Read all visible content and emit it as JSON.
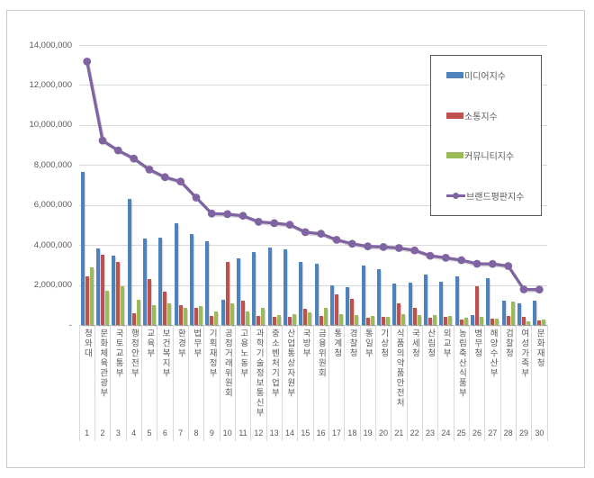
{
  "chart": {
    "y_axis": {
      "tick_labels": [
        "14,000,000",
        "12,000,000",
        "10,000,000",
        "8,000,000",
        "6,000,000",
        "4,000,000",
        "2,000,000",
        "-"
      ],
      "tick_values": [
        14000000,
        12000000,
        10000000,
        8000000,
        6000000,
        4000000,
        2000000,
        0
      ]
    },
    "colors": {
      "grid": "#d9d9d9",
      "axis_line": "#bfbfbf",
      "frame": "#c9c9c9",
      "axis_text": "#595959",
      "legend_border": "#595959"
    }
  },
  "chart_data": {
    "type": "bar",
    "subtype": "grouped bars with line overlay",
    "title": "",
    "xlabel": "",
    "ylabel": "",
    "ylim": [
      0,
      14000000
    ],
    "y_tick_step": 2000000,
    "grid": true,
    "legend_position": "upper-right",
    "categories": [
      "청와대",
      "문화체육관광부",
      "국토교통부",
      "행정안전부",
      "교육부",
      "보건복지부",
      "환경부",
      "법무부",
      "기획재정부",
      "공정거래위원회",
      "고용노동부",
      "과학기술정보통신부",
      "중소벤처기업부",
      "산업통상자원부",
      "국방부",
      "금융위원회",
      "통계청",
      "경찰청",
      "통일부",
      "기상청",
      "식품의약품안전처",
      "국세청",
      "산림청",
      "외교부",
      "농림축산식품부",
      "병무청",
      "해양수산부",
      "검찰청",
      "여성가족부",
      "문화재청"
    ],
    "ranks": [
      "1",
      "2",
      "3",
      "4",
      "5",
      "6",
      "7",
      "8",
      "9",
      "10",
      "11",
      "12",
      "13",
      "14",
      "15",
      "16",
      "17",
      "18",
      "19",
      "20",
      "21",
      "22",
      "23",
      "24",
      "25",
      "26",
      "27",
      "28",
      "29",
      "30"
    ],
    "series": [
      {
        "name": "미디어지수",
        "type": "bar",
        "color": "#4F81BD",
        "values": [
          7670000,
          3840000,
          3460000,
          6320000,
          4310000,
          4380000,
          5090000,
          4560000,
          4190000,
          1250000,
          3350000,
          3660000,
          3850000,
          3790000,
          3130000,
          3080000,
          1960000,
          1870000,
          2950000,
          2790000,
          2080000,
          2120000,
          2530000,
          2170000,
          2450000,
          500000,
          2330000,
          1220000,
          1100000,
          1200000
        ]
      },
      {
        "name": "소통지수",
        "type": "bar",
        "color": "#C0504D",
        "values": [
          2450000,
          3510000,
          3130000,
          570000,
          2300000,
          1670000,
          1000000,
          850000,
          450000,
          3130000,
          1220000,
          450000,
          410000,
          390000,
          800000,
          470000,
          1550000,
          1300000,
          350000,
          420000,
          1100000,
          870000,
          370000,
          420000,
          270000,
          1930000,
          300000,
          450000,
          420000,
          230000
        ]
      },
      {
        "name": "커뮤니티지수",
        "type": "bar",
        "color": "#9BBB59",
        "values": [
          2870000,
          1700000,
          1950000,
          1250000,
          980000,
          1100000,
          870000,
          950000,
          680000,
          1100000,
          690000,
          840000,
          510000,
          560000,
          650000,
          840000,
          560000,
          500000,
          450000,
          390000,
          540000,
          510000,
          480000,
          450000,
          370000,
          420000,
          330000,
          1170000,
          190000,
          270000
        ]
      },
      {
        "name": "브랜드평판지수",
        "type": "line",
        "color": "#8064A2",
        "values": [
          13170000,
          9220000,
          8730000,
          8320000,
          7770000,
          7390000,
          7170000,
          6370000,
          5570000,
          5540000,
          5460000,
          5160000,
          5090000,
          5010000,
          4640000,
          4560000,
          4260000,
          4060000,
          3930000,
          3900000,
          3850000,
          3730000,
          3460000,
          3360000,
          3240000,
          3060000,
          3050000,
          2950000,
          1780000,
          1770000
        ]
      }
    ]
  }
}
